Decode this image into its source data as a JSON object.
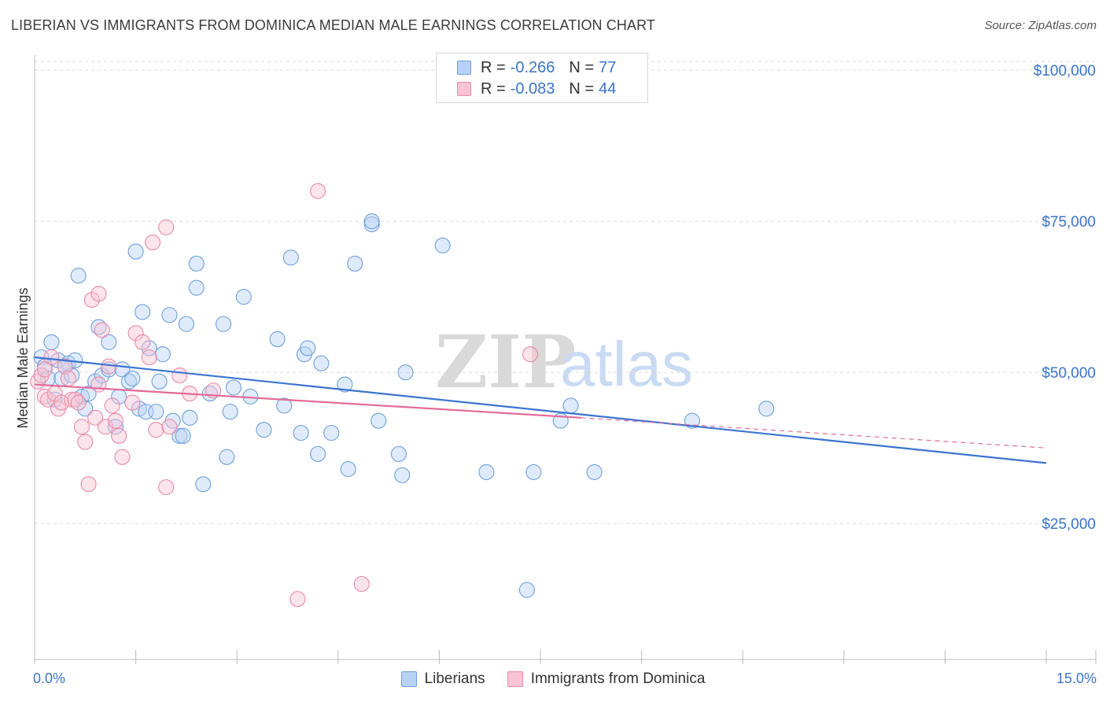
{
  "title": "LIBERIAN VS IMMIGRANTS FROM DOMINICA MEDIAN MALE EARNINGS CORRELATION CHART",
  "source": "Source: ZipAtlas.com",
  "watermark": {
    "zip": "ZIP",
    "atlas": "atlas"
  },
  "legend": {
    "r_label": "R =",
    "n_label": "N =",
    "rows": [
      {
        "r": "-0.266",
        "n": "77",
        "fill": "#b8d2f4",
        "stroke": "#6f9fdc"
      },
      {
        "r": "-0.083",
        "n": "44",
        "fill": "#f8c3d3",
        "stroke": "#e88aa8"
      }
    ]
  },
  "bottom_legend": [
    {
      "label": "Liberians",
      "fill": "#b8d2f4",
      "stroke": "#6f9fdc"
    },
    {
      "label": "Immigrants from Dominica",
      "fill": "#f8c3d3",
      "stroke": "#e88aa8"
    }
  ],
  "x_axis": {
    "min_label": "0.0%",
    "max_label": "15.0%"
  },
  "chart_data": {
    "type": "scatter",
    "title": "LIBERIAN VS IMMIGRANTS FROM DOMINICA MEDIAN MALE EARNINGS CORRELATION CHART",
    "xlabel": "",
    "ylabel": "Median Male Earnings",
    "xlim": [
      0,
      15
    ],
    "ylim": [
      2500,
      102500
    ],
    "y_ticks": [
      {
        "value": 25000,
        "label": "$25,000"
      },
      {
        "value": 50000,
        "label": "$50,000"
      },
      {
        "value": 75000,
        "label": "$75,000"
      },
      {
        "value": 100000,
        "label": "$100,000"
      }
    ],
    "grid": true,
    "legend_position": "top-center",
    "colors": {
      "liberians": "#3b74d1",
      "dominica": "#e46a98"
    },
    "series": [
      {
        "name": "Liberians",
        "color": "#3b74d1",
        "r": -0.266,
        "n": 77,
        "trend": {
          "x": [
            0,
            15
          ],
          "y": [
            52500,
            35000
          ]
        },
        "points": [
          [
            0.1,
            52.5
          ],
          [
            0.15,
            51.0
          ],
          [
            0.2,
            49.0
          ],
          [
            0.25,
            55.0
          ],
          [
            0.3,
            45.5
          ],
          [
            0.35,
            52.0
          ],
          [
            0.4,
            49.0
          ],
          [
            0.5,
            51.5
          ],
          [
            0.6,
            52.0
          ],
          [
            0.55,
            49.5
          ],
          [
            0.65,
            66.0
          ],
          [
            0.7,
            46.0
          ],
          [
            0.75,
            44.0
          ],
          [
            0.8,
            46.5
          ],
          [
            0.9,
            48.5
          ],
          [
            0.95,
            57.5
          ],
          [
            1.0,
            49.5
          ],
          [
            1.1,
            50.5
          ],
          [
            1.1,
            55.0
          ],
          [
            1.2,
            41.0
          ],
          [
            1.25,
            46.0
          ],
          [
            1.3,
            50.5
          ],
          [
            1.4,
            48.5
          ],
          [
            1.45,
            49.0
          ],
          [
            1.5,
            70.0
          ],
          [
            1.55,
            44.0
          ],
          [
            1.6,
            60.0
          ],
          [
            1.65,
            43.5
          ],
          [
            1.7,
            54.0
          ],
          [
            1.8,
            43.5
          ],
          [
            1.85,
            48.5
          ],
          [
            1.9,
            53.0
          ],
          [
            2.0,
            59.5
          ],
          [
            2.05,
            42.0
          ],
          [
            2.15,
            39.5
          ],
          [
            2.2,
            39.5
          ],
          [
            2.25,
            58.0
          ],
          [
            2.3,
            42.5
          ],
          [
            2.4,
            68.0
          ],
          [
            2.4,
            64.0
          ],
          [
            2.5,
            31.5
          ],
          [
            2.6,
            46.5
          ],
          [
            2.8,
            58.0
          ],
          [
            2.85,
            36.0
          ],
          [
            2.9,
            43.5
          ],
          [
            2.95,
            47.5
          ],
          [
            3.1,
            62.5
          ],
          [
            3.2,
            46.0
          ],
          [
            3.4,
            40.5
          ],
          [
            3.6,
            55.5
          ],
          [
            3.7,
            44.5
          ],
          [
            3.8,
            69.0
          ],
          [
            3.95,
            40.0
          ],
          [
            4.0,
            53.0
          ],
          [
            4.05,
            54.0
          ],
          [
            4.2,
            36.5
          ],
          [
            4.25,
            51.5
          ],
          [
            4.4,
            40.0
          ],
          [
            4.6,
            48.0
          ],
          [
            4.65,
            34.0
          ],
          [
            4.75,
            68.0
          ],
          [
            5.0,
            74.5
          ],
          [
            5.0,
            75.0
          ],
          [
            5.1,
            42.0
          ],
          [
            5.4,
            36.5
          ],
          [
            5.45,
            33.0
          ],
          [
            5.5,
            50.0
          ],
          [
            6.05,
            71.0
          ],
          [
            6.7,
            33.5
          ],
          [
            7.3,
            14.0
          ],
          [
            7.4,
            33.5
          ],
          [
            7.8,
            42.0
          ],
          [
            7.95,
            44.5
          ],
          [
            8.3,
            33.5
          ],
          [
            9.75,
            42.0
          ],
          [
            10.85,
            44.0
          ],
          [
            0.45,
            51.0
          ]
        ]
      },
      {
        "name": "Immigrants from Dominica",
        "color": "#e46a98",
        "r": -0.083,
        "n": 44,
        "trend": {
          "x": [
            0,
            8.1
          ],
          "y": [
            48000,
            42500
          ]
        },
        "trend_dashed": {
          "x": [
            8.1,
            15
          ],
          "y": [
            42500,
            37500
          ]
        },
        "points": [
          [
            0.05,
            48.5
          ],
          [
            0.1,
            49.5
          ],
          [
            0.15,
            46.0
          ],
          [
            0.2,
            45.5
          ],
          [
            0.25,
            52.5
          ],
          [
            0.3,
            46.5
          ],
          [
            0.35,
            44.0
          ],
          [
            0.4,
            45.0
          ],
          [
            0.45,
            51.0
          ],
          [
            0.5,
            49.0
          ],
          [
            0.55,
            45.5
          ],
          [
            0.6,
            45.5
          ],
          [
            0.65,
            45.0
          ],
          [
            0.7,
            41.0
          ],
          [
            0.75,
            38.5
          ],
          [
            0.8,
            31.5
          ],
          [
            0.85,
            62.0
          ],
          [
            0.9,
            42.5
          ],
          [
            0.95,
            63.0
          ],
          [
            1.0,
            57.0
          ],
          [
            1.05,
            41.0
          ],
          [
            1.1,
            51.0
          ],
          [
            1.15,
            44.5
          ],
          [
            1.2,
            42.0
          ],
          [
            1.25,
            39.5
          ],
          [
            1.3,
            36.0
          ],
          [
            1.45,
            45.0
          ],
          [
            1.5,
            56.5
          ],
          [
            1.6,
            55.0
          ],
          [
            1.7,
            52.5
          ],
          [
            1.75,
            71.5
          ],
          [
            1.8,
            40.5
          ],
          [
            1.95,
            74.0
          ],
          [
            2.0,
            41.0
          ],
          [
            1.95,
            31.0
          ],
          [
            2.15,
            49.5
          ],
          [
            2.3,
            46.5
          ],
          [
            2.65,
            47.0
          ],
          [
            3.9,
            12.5
          ],
          [
            4.2,
            80.0
          ],
          [
            4.85,
            15.0
          ],
          [
            7.35,
            53.0
          ],
          [
            0.15,
            50.5
          ],
          [
            0.95,
            48.0
          ]
        ]
      }
    ]
  }
}
